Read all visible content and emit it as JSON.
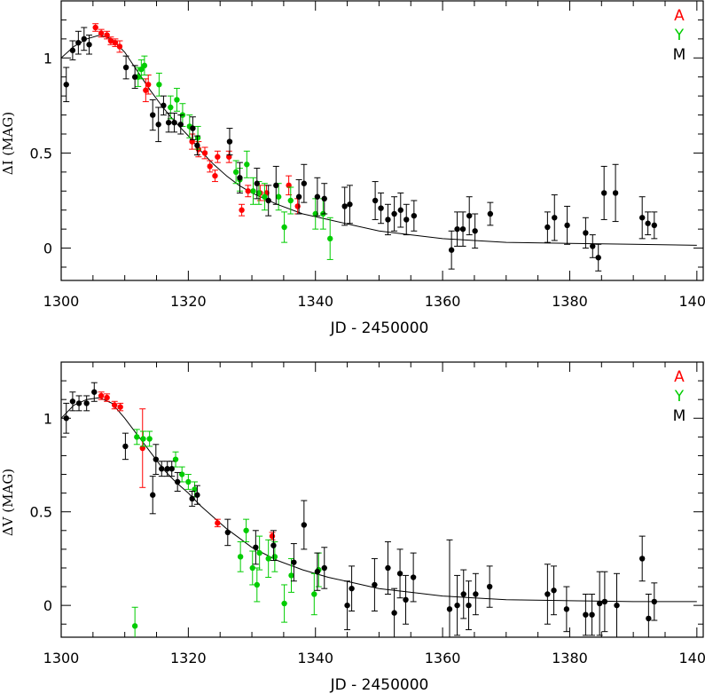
{
  "colors": {
    "A": "#ff0000",
    "Y": "#00cc00",
    "M": "#000000",
    "axis": "#000000"
  },
  "chart_data": [
    {
      "type": "scatter",
      "xlabel": "JD - 2450000",
      "ylabel": "ΔI (MAG)",
      "xlim": [
        1300,
        1401
      ],
      "ylim": [
        -0.17,
        1.3
      ],
      "x_ticks": [
        "1300",
        "1320",
        "1340",
        "1360",
        "1380",
        "1400"
      ],
      "y_ticks": [
        "0",
        "0.5",
        "1"
      ],
      "legend": [
        "A",
        "Y",
        "M"
      ],
      "legend_position": "top-right",
      "series": [
        {
          "name": "A",
          "points": [
            [
              1305.4,
              1.16,
              0.02
            ],
            [
              1306.3,
              1.13,
              0.02
            ],
            [
              1307.2,
              1.12,
              0.02
            ],
            [
              1307.8,
              1.09,
              0.02
            ],
            [
              1308.5,
              1.08,
              0.02
            ],
            [
              1309.2,
              1.06,
              0.03
            ],
            [
              1313.3,
              0.83,
              0.06
            ],
            [
              1313.7,
              0.86,
              0.05
            ],
            [
              1320.6,
              0.56,
              0.04
            ],
            [
              1321.6,
              0.52,
              0.04
            ],
            [
              1322.6,
              0.5,
              0.03
            ],
            [
              1323.4,
              0.43,
              0.03
            ],
            [
              1324.2,
              0.38,
              0.03
            ],
            [
              1324.6,
              0.48,
              0.03
            ],
            [
              1326.4,
              0.48,
              0.03
            ],
            [
              1328.4,
              0.2,
              0.03
            ],
            [
              1329.4,
              0.3,
              0.03
            ],
            [
              1331.3,
              0.29,
              0.04
            ],
            [
              1332.3,
              0.29,
              0.04
            ],
            [
              1335.8,
              0.33,
              0.05
            ],
            [
              1337.2,
              0.22,
              0.04
            ]
          ]
        },
        {
          "name": "Y",
          "points": [
            [
              1312.1,
              0.9,
              0.05
            ],
            [
              1312.6,
              0.94,
              0.05
            ],
            [
              1313.1,
              0.96,
              0.05
            ],
            [
              1315.4,
              0.86,
              0.06
            ],
            [
              1317.2,
              0.74,
              0.06
            ],
            [
              1318.2,
              0.78,
              0.06
            ],
            [
              1319.1,
              0.7,
              0.06
            ],
            [
              1320.2,
              0.64,
              0.06
            ],
            [
              1321.5,
              0.58,
              0.06
            ],
            [
              1327.5,
              0.4,
              0.06
            ],
            [
              1328.1,
              0.36,
              0.06
            ],
            [
              1329.2,
              0.44,
              0.07
            ],
            [
              1330.2,
              0.3,
              0.07
            ],
            [
              1331.1,
              0.29,
              0.06
            ],
            [
              1332.0,
              0.27,
              0.07
            ],
            [
              1334.2,
              0.27,
              0.07
            ],
            [
              1335.1,
              0.11,
              0.08
            ],
            [
              1336.1,
              0.25,
              0.07
            ],
            [
              1340.0,
              0.18,
              0.08
            ],
            [
              1341.2,
              0.18,
              0.08
            ],
            [
              1342.3,
              0.05,
              0.11
            ]
          ]
        },
        {
          "name": "M",
          "points": [
            [
              1300.8,
              0.86,
              0.09
            ],
            [
              1301.8,
              1.04,
              0.05
            ],
            [
              1302.7,
              1.08,
              0.06
            ],
            [
              1303.6,
              1.1,
              0.06
            ],
            [
              1304.4,
              1.07,
              0.05
            ],
            [
              1310.2,
              0.95,
              0.06
            ],
            [
              1311.6,
              0.9,
              0.06
            ],
            [
              1314.4,
              0.7,
              0.08
            ],
            [
              1315.3,
              0.65,
              0.09
            ],
            [
              1316.1,
              0.75,
              0.05
            ],
            [
              1316.9,
              0.66,
              0.05
            ],
            [
              1317.8,
              0.66,
              0.05
            ],
            [
              1318.8,
              0.65,
              0.05
            ],
            [
              1320.7,
              0.63,
              0.06
            ],
            [
              1321.4,
              0.54,
              0.05
            ],
            [
              1326.5,
              0.56,
              0.07
            ],
            [
              1328.1,
              0.37,
              0.08
            ],
            [
              1330.8,
              0.34,
              0.08
            ],
            [
              1332.6,
              0.25,
              0.08
            ],
            [
              1333.8,
              0.33,
              0.1
            ],
            [
              1337.4,
              0.27,
              0.09
            ],
            [
              1338.2,
              0.34,
              0.1
            ],
            [
              1340.3,
              0.27,
              0.1
            ],
            [
              1341.4,
              0.26,
              0.08
            ],
            [
              1344.6,
              0.22,
              0.1
            ],
            [
              1345.4,
              0.23,
              0.1
            ],
            [
              1349.4,
              0.25,
              0.1
            ],
            [
              1350.3,
              0.21,
              0.08
            ],
            [
              1351.4,
              0.15,
              0.08
            ],
            [
              1352.4,
              0.18,
              0.09
            ],
            [
              1353.4,
              0.2,
              0.09
            ],
            [
              1354.3,
              0.15,
              0.08
            ],
            [
              1355.5,
              0.17,
              0.08
            ],
            [
              1361.4,
              -0.01,
              0.1
            ],
            [
              1362.3,
              0.1,
              0.09
            ],
            [
              1363.2,
              0.1,
              0.09
            ],
            [
              1364.2,
              0.17,
              0.1
            ],
            [
              1365.1,
              0.09,
              0.09
            ],
            [
              1367.5,
              0.18,
              0.06
            ],
            [
              1376.5,
              0.11,
              0.08
            ],
            [
              1377.6,
              0.16,
              0.12
            ],
            [
              1379.6,
              0.12,
              0.1
            ],
            [
              1382.5,
              0.08,
              0.08
            ],
            [
              1383.6,
              0.01,
              0.06
            ],
            [
              1384.5,
              -0.05,
              0.07
            ],
            [
              1385.4,
              0.29,
              0.14
            ],
            [
              1387.2,
              0.29,
              0.15
            ],
            [
              1391.4,
              0.16,
              0.11
            ],
            [
              1392.3,
              0.13,
              0.06
            ],
            [
              1393.3,
              0.12,
              0.07
            ]
          ]
        }
      ],
      "model_curve": [
        [
          1300,
          1.0
        ],
        [
          1302,
          1.06
        ],
        [
          1304,
          1.1
        ],
        [
          1306,
          1.12
        ],
        [
          1308,
          1.1
        ],
        [
          1310,
          1.03
        ],
        [
          1312,
          0.93
        ],
        [
          1314,
          0.83
        ],
        [
          1316,
          0.74
        ],
        [
          1318,
          0.66
        ],
        [
          1320,
          0.59
        ],
        [
          1322,
          0.51
        ],
        [
          1324,
          0.44
        ],
        [
          1326,
          0.38
        ],
        [
          1328,
          0.33
        ],
        [
          1330,
          0.29
        ],
        [
          1334,
          0.23
        ],
        [
          1338,
          0.18
        ],
        [
          1342,
          0.15
        ],
        [
          1346,
          0.12
        ],
        [
          1350,
          0.09
        ],
        [
          1355,
          0.07
        ],
        [
          1360,
          0.05
        ],
        [
          1365,
          0.04
        ],
        [
          1370,
          0.03
        ],
        [
          1380,
          0.025
        ],
        [
          1390,
          0.02
        ],
        [
          1400,
          0.015
        ]
      ]
    },
    {
      "type": "scatter",
      "xlabel": "JD - 2450000",
      "ylabel": "ΔV (MAG)",
      "xlim": [
        1300,
        1401
      ],
      "ylim": [
        -0.17,
        1.3
      ],
      "x_ticks": [
        "1300",
        "1320",
        "1340",
        "1360",
        "1380",
        "1400"
      ],
      "y_ticks": [
        "0",
        "0.5",
        "1"
      ],
      "legend": [
        "A",
        "Y",
        "M"
      ],
      "legend_position": "top-right",
      "series": [
        {
          "name": "A",
          "points": [
            [
              1306.3,
              1.12,
              0.02
            ],
            [
              1307.2,
              1.11,
              0.02
            ],
            [
              1308.4,
              1.07,
              0.02
            ],
            [
              1309.3,
              1.06,
              0.02
            ],
            [
              1312.8,
              0.84,
              0.21
            ],
            [
              1324.6,
              0.44,
              0.02
            ],
            [
              1333.2,
              0.37,
              0.02
            ]
          ]
        },
        {
          "name": "Y",
          "points": [
            [
              1311.6,
              -0.11,
              0.1
            ],
            [
              1311.9,
              0.9,
              0.04
            ],
            [
              1312.9,
              0.89,
              0.04
            ],
            [
              1313.9,
              0.89,
              0.04
            ],
            [
              1318.0,
              0.78,
              0.04
            ],
            [
              1319.0,
              0.7,
              0.04
            ],
            [
              1320.0,
              0.66,
              0.04
            ],
            [
              1321.0,
              0.62,
              0.04
            ],
            [
              1328.2,
              0.26,
              0.08
            ],
            [
              1329.1,
              0.4,
              0.06
            ],
            [
              1330.1,
              0.2,
              0.09
            ],
            [
              1330.8,
              0.11,
              0.09
            ],
            [
              1331.2,
              0.28,
              0.09
            ],
            [
              1332.6,
              0.25,
              0.1
            ],
            [
              1333.6,
              0.26,
              0.08
            ],
            [
              1335.1,
              0.01,
              0.1
            ],
            [
              1336.2,
              0.16,
              0.09
            ],
            [
              1339.8,
              0.06,
              0.11
            ],
            [
              1340.5,
              0.19,
              0.09
            ]
          ]
        },
        {
          "name": "M",
          "points": [
            [
              1300.8,
              1.0,
              0.08
            ],
            [
              1301.8,
              1.09,
              0.05
            ],
            [
              1302.8,
              1.08,
              0.04
            ],
            [
              1304.0,
              1.08,
              0.04
            ],
            [
              1305.2,
              1.14,
              0.05
            ],
            [
              1310.1,
              0.85,
              0.07
            ],
            [
              1314.4,
              0.59,
              0.1
            ],
            [
              1314.9,
              0.78,
              0.08
            ],
            [
              1315.8,
              0.73,
              0.04
            ],
            [
              1316.7,
              0.73,
              0.04
            ],
            [
              1317.4,
              0.73,
              0.04
            ],
            [
              1318.3,
              0.66,
              0.05
            ],
            [
              1320.6,
              0.57,
              0.04
            ],
            [
              1321.4,
              0.59,
              0.05
            ],
            [
              1326.2,
              0.39,
              0.07
            ],
            [
              1330.6,
              0.31,
              0.09
            ],
            [
              1333.4,
              0.32,
              0.08
            ],
            [
              1336.6,
              0.23,
              0.1
            ],
            [
              1338.2,
              0.43,
              0.13
            ],
            [
              1340.3,
              0.18,
              0.1
            ],
            [
              1341.4,
              0.2,
              0.11
            ],
            [
              1345.0,
              0.0,
              0.13
            ],
            [
              1345.7,
              0.09,
              0.12
            ],
            [
              1349.3,
              0.11,
              0.14
            ],
            [
              1351.4,
              0.2,
              0.14
            ],
            [
              1352.4,
              -0.04,
              0.13
            ],
            [
              1353.3,
              0.17,
              0.13
            ],
            [
              1354.2,
              0.03,
              0.13
            ],
            [
              1355.4,
              0.15,
              0.13
            ],
            [
              1361.1,
              -0.02,
              0.37
            ],
            [
              1362.3,
              0.0,
              0.16
            ],
            [
              1363.3,
              0.06,
              0.13
            ],
            [
              1364.1,
              0.0,
              0.13
            ],
            [
              1365.2,
              0.06,
              0.11
            ],
            [
              1367.4,
              0.1,
              0.11
            ],
            [
              1376.5,
              0.06,
              0.16
            ],
            [
              1377.5,
              0.08,
              0.13
            ],
            [
              1379.5,
              -0.02,
              0.12
            ],
            [
              1382.5,
              -0.05,
              0.11
            ],
            [
              1383.5,
              -0.05,
              0.11
            ],
            [
              1384.7,
              0.01,
              0.17
            ],
            [
              1385.5,
              0.02,
              0.16
            ],
            [
              1387.4,
              0.0,
              0.17
            ],
            [
              1391.4,
              0.25,
              0.12
            ],
            [
              1392.4,
              -0.07,
              0.13
            ],
            [
              1393.3,
              0.02,
              0.1
            ]
          ]
        }
      ],
      "model_curve": [
        [
          1300,
          1.0
        ],
        [
          1302,
          1.07
        ],
        [
          1304,
          1.1
        ],
        [
          1306,
          1.11
        ],
        [
          1308,
          1.08
        ],
        [
          1310,
          1.0
        ],
        [
          1312,
          0.91
        ],
        [
          1314,
          0.82
        ],
        [
          1316,
          0.73
        ],
        [
          1318,
          0.66
        ],
        [
          1320,
          0.6
        ],
        [
          1322,
          0.53
        ],
        [
          1324,
          0.47
        ],
        [
          1326,
          0.41
        ],
        [
          1328,
          0.36
        ],
        [
          1330,
          0.31
        ],
        [
          1334,
          0.24
        ],
        [
          1338,
          0.19
        ],
        [
          1342,
          0.15
        ],
        [
          1346,
          0.12
        ],
        [
          1350,
          0.09
        ],
        [
          1355,
          0.07
        ],
        [
          1360,
          0.05
        ],
        [
          1365,
          0.04
        ],
        [
          1370,
          0.03
        ],
        [
          1380,
          0.025
        ],
        [
          1390,
          0.02
        ],
        [
          1400,
          0.02
        ]
      ]
    }
  ]
}
